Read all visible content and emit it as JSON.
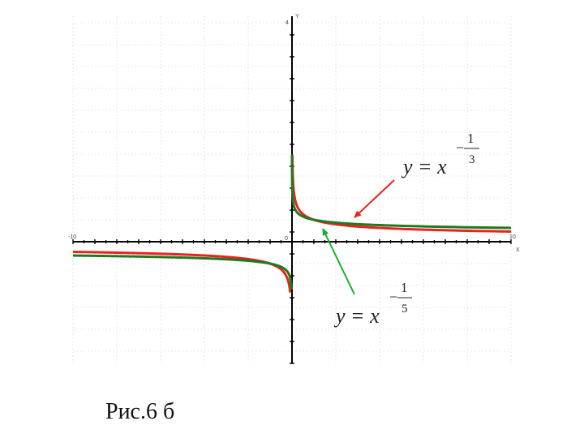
{
  "caption": "Рис.6 б",
  "chart_data": {
    "type": "line",
    "title": "",
    "xlabel": "X",
    "ylabel": "Y",
    "xlim": [
      -10,
      10
    ],
    "ylim": [
      -2.5,
      4
    ],
    "grid": true,
    "axis_tick_labels": {
      "x_min": "-10",
      "x_max": "10",
      "origin": "0",
      "y_max": "4"
    },
    "series": [
      {
        "name": "y = x^(-1/3)",
        "color": "#e8231e",
        "exponent_num": 1,
        "exponent_den": 3,
        "label_lhs": "y = x",
        "label_minus": "−",
        "label_numerator": "1",
        "label_denominator": "3"
      },
      {
        "name": "y = x^(-1/5)",
        "color": "#1f7a1f",
        "exponent_num": 1,
        "exponent_den": 5,
        "label_lhs": "y = x",
        "label_minus": "−",
        "label_numerator": "1",
        "label_denominator": "5"
      }
    ],
    "arrow_colors": [
      "#e8231e",
      "#16b02a"
    ]
  }
}
